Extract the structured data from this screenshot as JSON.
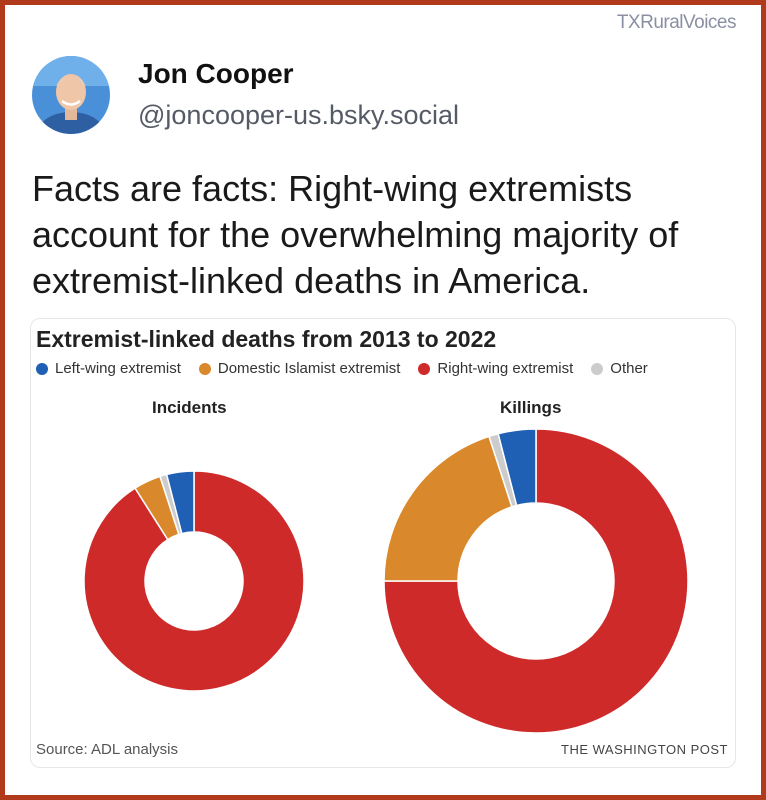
{
  "watermark": "TXRuralVoices",
  "author": {
    "name": "Jon Cooper",
    "handle": "@joncooper-us.bsky.social"
  },
  "post": {
    "text": "Facts are facts: Right-wing extremists account for the overwhelming majority of extremist-linked deaths in America."
  },
  "colors": {
    "left_wing": "#1f5fb4",
    "islamist": "#d9892b",
    "right_wing": "#cf2a2a",
    "other": "#cccccc",
    "frame": "#b23a1c"
  },
  "chart_data": {
    "type": "pie",
    "title": "Extremist-linked deaths from 2013 to 2022",
    "legend": [
      {
        "label": "Left-wing extremist",
        "color": "#1f5fb4"
      },
      {
        "label": "Domestic Islamist extremist",
        "color": "#d9892b"
      },
      {
        "label": "Right-wing extremist",
        "color": "#cf2a2a"
      },
      {
        "label": "Other",
        "color": "#cccccc"
      }
    ],
    "legend_position": "top",
    "categories": [
      "Left-wing extremist",
      "Domestic Islamist extremist",
      "Right-wing extremist",
      "Other"
    ],
    "charts": [
      {
        "name": "Incidents",
        "values": [
          4,
          4,
          91,
          1
        ]
      },
      {
        "name": "Killings",
        "values": [
          4,
          20,
          75,
          1
        ]
      }
    ],
    "source": "Source: ADL analysis",
    "credit": "THE WASHINGTON POST"
  }
}
